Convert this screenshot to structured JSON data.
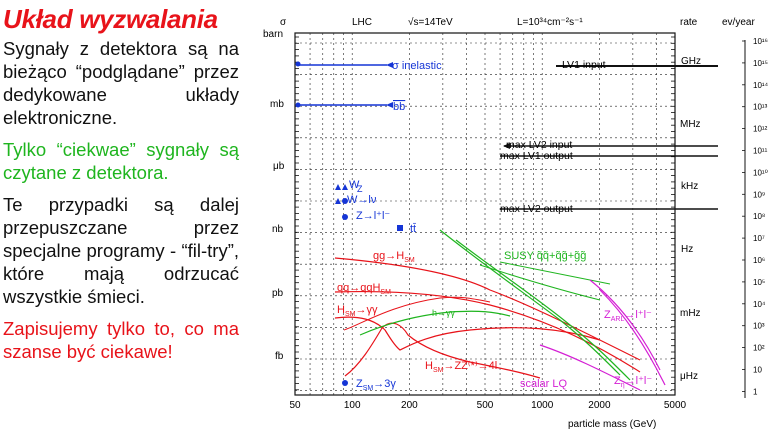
{
  "left": {
    "title": "Układ wyzwalania",
    "p1": "Sygnały z detektora są na bieżąco “podglądane” przez dedykowane układy elektroniczne.",
    "p2": "Tylko “ciekwae” sygnały są czytane z detektora.",
    "p3": "Te przypadki są dalej przepuszczane przez specjalne programy - “fil-try”, które mają odrzucać wszystkie śmieci.",
    "p4": "Zapisujemy tylko to, co ma szanse być ciekawe!"
  },
  "chart_data": {
    "type": "line",
    "header": {
      "lhc": "LHC",
      "energy": "√s=14TeV",
      "lumi": "L=10³⁴cm⁻²s⁻¹"
    },
    "ylabel_top": "σ",
    "ylabel_bottom": "barn",
    "rate_label": "rate",
    "evyear_label": "ev/year",
    "xlabel": "particle mass (GeV)",
    "x_ticks": [
      "50",
      "100",
      "200",
      "500",
      "1000",
      "2000",
      "5000"
    ],
    "sigma_ticks": [
      "mb",
      "μb",
      "nb",
      "pb",
      "fb"
    ],
    "rate_ticks": [
      "GHz",
      "MHz",
      "kHz",
      "Hz",
      "mHz",
      "μHz"
    ],
    "evyear_ticks": [
      "10¹⁶",
      "10¹⁵",
      "10¹⁴",
      "10¹³",
      "10¹²",
      "10¹¹",
      "10¹⁰",
      "10⁹",
      "10⁸",
      "10⁷",
      "10⁶",
      "10⁵",
      "10⁴",
      "10³",
      "10²",
      "10",
      "1"
    ],
    "levels": [
      {
        "label": "LV1 input"
      },
      {
        "label": "max LV2 input"
      },
      {
        "label": "max LV1 output"
      },
      {
        "label": "max LV2 output"
      }
    ],
    "labels": {
      "sigma_inel": "σ inelastic",
      "bb": "bb",
      "wz_w": "W",
      "wz_z": "Z",
      "w_lnu": "W→lν",
      "z_ll": "Z→l⁺l⁻",
      "tt": "tt̄",
      "gg_hsm": "gg→H",
      "sm": "SM",
      "qq_qqhsm": "qq→qqH",
      "h_gg": "H",
      "h_gg_tail": "→γγ",
      "susy": "SUSY q̃q̃+q̃g̃+g̃g̃",
      "h_zz": "H",
      "h_zz_tail": "→ZZ⁽*⁾→4l",
      "h_gamma": "h→γγ",
      "zarl": "Z",
      "zarl_sub": "ARL",
      "zarl_tail": "→l⁺l⁻",
      "zeta": "Z",
      "zeta_sub": "η",
      "zeta_tail": "→l⁺l⁻",
      "scalar_lq": "scalar LQ",
      "zsm": "Z",
      "zsm_tail": "→3γ"
    }
  }
}
